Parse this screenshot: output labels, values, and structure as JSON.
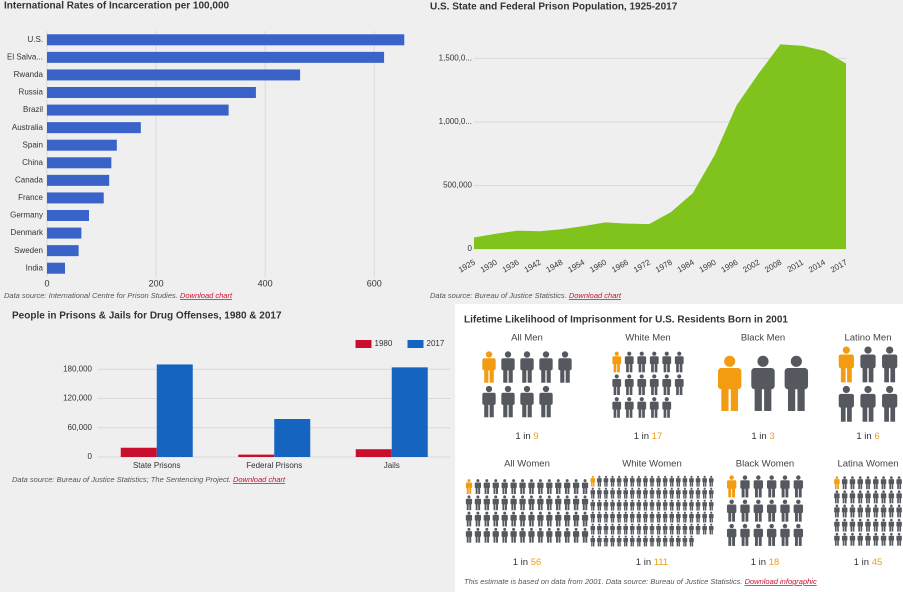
{
  "chart_data": [
    {
      "type": "hbar",
      "title": "International Rates of Incarceration per 100,000",
      "categories": [
        "U.S.",
        "El Salva...",
        "Rwanda",
        "Russia",
        "Brazil",
        "Australia",
        "Spain",
        "China",
        "Canada",
        "France",
        "Germany",
        "Denmark",
        "Sweden",
        "India"
      ],
      "values": [
        655,
        618,
        464,
        383,
        333,
        172,
        128,
        118,
        114,
        104,
        77,
        63,
        58,
        33
      ],
      "color": "#3a63c9",
      "xlim": [
        0,
        660
      ],
      "xticks": [
        0,
        200,
        400,
        600
      ],
      "grid": true,
      "source": "Data source: International Centre for Prison Studies.",
      "link": "Download chart"
    },
    {
      "type": "area",
      "title": "U.S. State and Federal Prison Population, 1925-2017",
      "categories": [
        "1925",
        "1930",
        "1936",
        "1942",
        "1948",
        "1954",
        "1960",
        "1966",
        "1972",
        "1978",
        "1984",
        "1990",
        "1996",
        "2002",
        "2008",
        "2011",
        "2014",
        "2017"
      ],
      "values": [
        91000,
        120000,
        145000,
        140000,
        155000,
        180000,
        210000,
        200000,
        196000,
        290000,
        440000,
        740000,
        1130000,
        1380000,
        1610000,
        1600000,
        1560000,
        1460000
      ],
      "color": "#7fc31c",
      "ylim": [
        0,
        1700000
      ],
      "yticks": [
        0,
        {
          "value": 500000,
          "label": "500,000"
        },
        {
          "value": 1000000,
          "label": "1,000,0..."
        },
        {
          "value": 1500000,
          "label": "1,500,0..."
        }
      ],
      "grid": true,
      "source": "Data source: Bureau of Justice Statistics.",
      "link": "Download chart"
    },
    {
      "type": "grouped-bar",
      "title": "People in Prisons & Jails for Drug Offenses, 1980 & 2017",
      "categories": [
        "State Prisons",
        "Federal Prisons",
        "Jails"
      ],
      "series": [
        {
          "name": "1980",
          "color": "#c8102e",
          "values": [
            19000,
            4900,
            16000
          ]
        },
        {
          "name": "2017",
          "color": "#1565c0",
          "values": [
            190000,
            78000,
            184000
          ]
        }
      ],
      "ylim": [
        0,
        195000
      ],
      "yticks": [
        0,
        {
          "value": 60000,
          "label": "60,000"
        },
        {
          "value": 120000,
          "label": "120,000"
        },
        {
          "value": 180000,
          "label": "180,000"
        }
      ],
      "grid": true,
      "legend": "top-right",
      "source": "Data source: Bureau of Justice Statistics; The Sentencing Project.",
      "link": "Download chart"
    },
    {
      "type": "pictogram",
      "title": "Lifetime Likelihood of Imprisonment for U.S. Residents Born in 2001",
      "categories": [
        "All Men",
        "White Men",
        "Black Men",
        "Latino Men",
        "All Women",
        "White Women",
        "Black Women",
        "Latina Women"
      ],
      "ratio_prefix": "1 in",
      "values": [
        9,
        17,
        3,
        6,
        56,
        111,
        18,
        45
      ],
      "highlight_color": "#f39c12",
      "color": "#55595f",
      "note": "This estimate is based on data from 2001. Data source: Bureau of Justice Statistics.",
      "link": "Download infographic"
    }
  ]
}
